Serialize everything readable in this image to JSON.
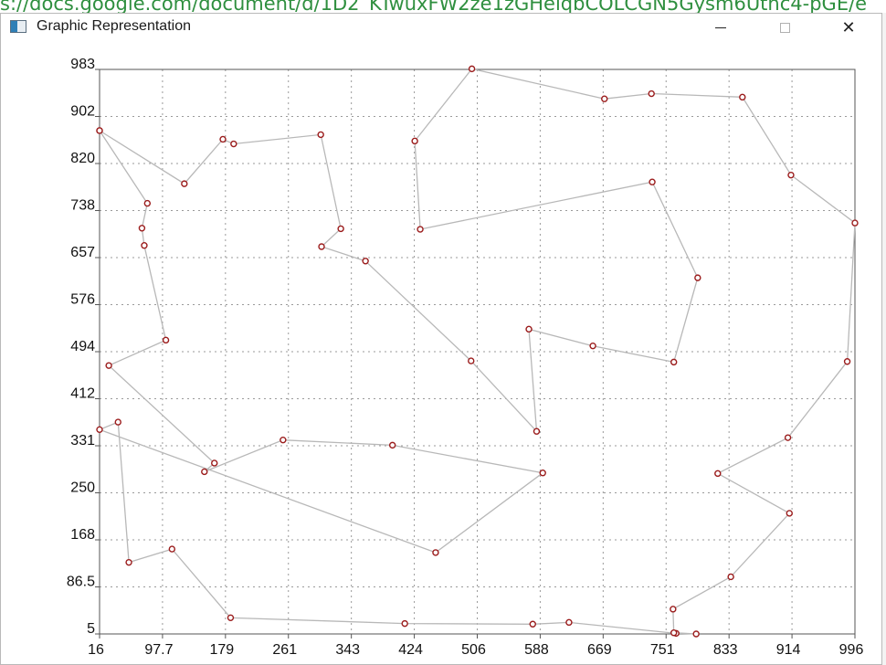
{
  "background": {
    "url_fragment": "s://docs.google.com/document/d/1D2_KTwuxFW2ze1zGHeiqbCOLCGN5Gysm6Uthc4-pGE/e"
  },
  "window": {
    "title": "Graphic Representation",
    "icon": "app-window-icon",
    "buttons": {
      "minimize": "minimize-icon",
      "maximize": "maximize-icon",
      "close": "close-icon"
    }
  },
  "colors": {
    "path": "#b8b8b8",
    "point": "#9b1c1c",
    "grid": "#9a9a9a",
    "axis": "#555555"
  },
  "chart_data": {
    "type": "line",
    "title": "",
    "xlabel": "",
    "ylabel": "",
    "xlim": [
      16,
      996
    ],
    "ylim": [
      5,
      983
    ],
    "grid": true,
    "x_ticks": [
      "16",
      "97.7",
      "179",
      "261",
      "343",
      "424",
      "506",
      "588",
      "669",
      "751",
      "833",
      "914",
      "996"
    ],
    "y_ticks": [
      "983",
      "902",
      "820",
      "738",
      "657",
      "576",
      "494",
      "412",
      "331",
      "250",
      "168",
      "86.5",
      "5"
    ],
    "series": [
      {
        "points": [
          [
            16,
            877
          ],
          [
            78,
            751
          ],
          [
            71,
            708
          ],
          [
            74,
            678
          ],
          [
            102,
            514
          ],
          [
            28,
            470
          ],
          [
            165,
            301
          ],
          [
            152,
            286
          ],
          [
            254,
            341
          ],
          [
            396,
            332
          ],
          [
            591,
            284
          ],
          [
            452,
            146
          ],
          [
            16,
            359
          ],
          [
            40,
            372
          ],
          [
            54,
            129
          ],
          [
            110,
            152
          ],
          [
            186,
            33
          ],
          [
            412,
            23
          ],
          [
            578,
            22
          ],
          [
            625,
            25
          ],
          [
            764,
            6
          ],
          [
            790,
            5
          ],
          [
            761,
            7
          ],
          [
            760,
            48
          ],
          [
            835,
            104
          ],
          [
            911,
            214
          ],
          [
            818,
            283
          ],
          [
            909,
            345
          ],
          [
            986,
            477
          ],
          [
            996,
            717
          ],
          [
            913,
            800
          ],
          [
            850,
            935
          ],
          [
            732,
            941
          ],
          [
            671,
            932
          ],
          [
            499,
            984
          ],
          [
            425,
            859
          ],
          [
            432,
            706
          ],
          [
            733,
            788
          ],
          [
            792,
            622
          ],
          [
            761,
            476
          ],
          [
            656,
            504
          ],
          [
            573,
            533
          ],
          [
            583,
            356
          ],
          [
            498,
            478
          ],
          [
            361,
            651
          ],
          [
            304,
            676
          ],
          [
            329,
            707
          ],
          [
            303,
            870
          ],
          [
            190,
            854
          ],
          [
            176,
            862
          ],
          [
            126,
            785
          ],
          [
            16,
            877
          ]
        ]
      }
    ]
  }
}
